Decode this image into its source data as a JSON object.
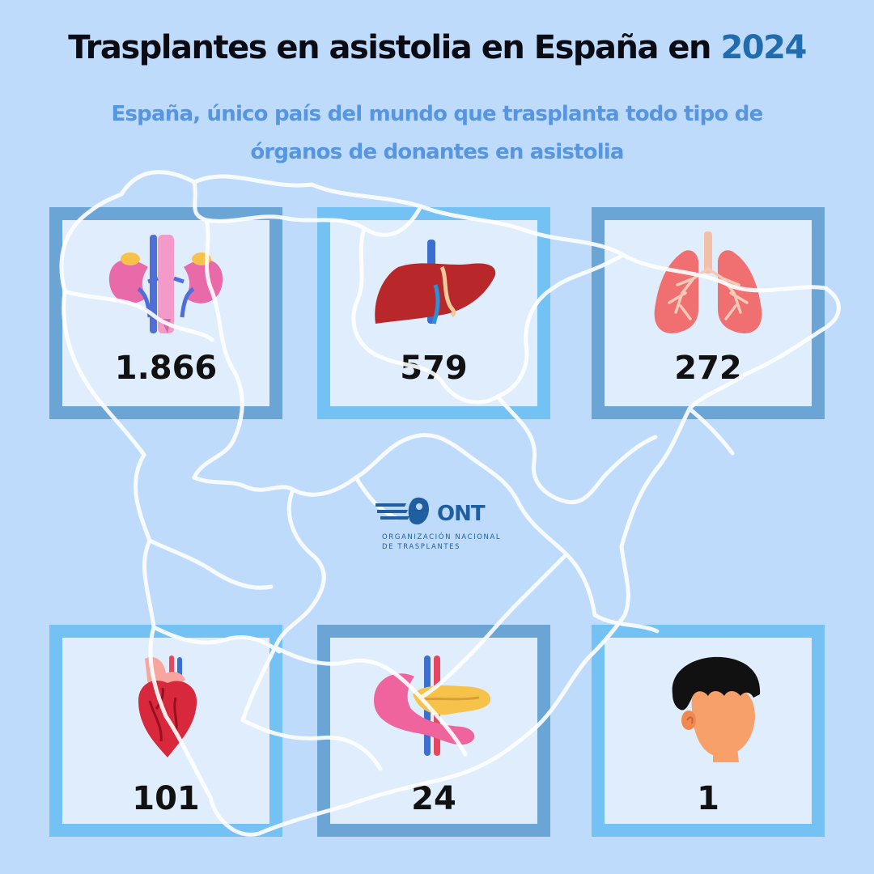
{
  "header": {
    "title_prefix": "Trasplantes en asistolia en España en",
    "title_year": "2024",
    "subtitle": "España, único país del mundo que trasplanta todo tipo de órganos de donantes en asistolia"
  },
  "organs": [
    {
      "icon": "kidney-icon",
      "value": "1.866"
    },
    {
      "icon": "liver-icon",
      "value": "579"
    },
    {
      "icon": "lungs-icon",
      "value": "272"
    },
    {
      "icon": "heart-icon",
      "value": "101"
    },
    {
      "icon": "pancreas-icon",
      "value": "24"
    },
    {
      "icon": "face-icon",
      "value": "1"
    }
  ],
  "logo": {
    "acronym": "ONT",
    "name_line1": "ORGANIZACIÓN NACIONAL",
    "name_line2": "DE TRASPLANTES"
  },
  "colors": {
    "background": "#bfdbfc",
    "title": "#0b0b14",
    "year_accent": "#1f6cae",
    "subtitle": "#5595e2",
    "card_fill": "#e0edfc",
    "card_border_dark": "#6aa5d6",
    "card_border_light": "#74c2f3",
    "map_lines": "#ffffff"
  }
}
